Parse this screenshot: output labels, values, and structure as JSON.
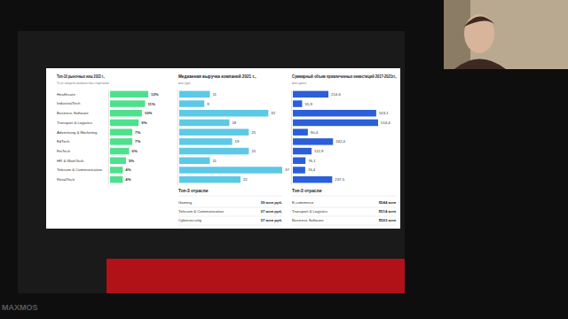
{
  "chart_data": [
    {
      "type": "bar",
      "orientation": "horizontal",
      "title": "Топ-10 рыночных ниш 2022 г.,",
      "subtitle": "% от общего количества стартапов",
      "categories": [
        "Healthcare",
        "IndustrialTech",
        "Business Software",
        "Transport & Logistics",
        "Advertising & Marketing",
        "EdTech",
        "FinTech",
        "HR & WorkTech",
        "Telecom & Communication",
        "RetailTech"
      ],
      "values": [
        12,
        11,
        10,
        9,
        7,
        7,
        6,
        5,
        4,
        4
      ],
      "value_labels": [
        "12%",
        "11%",
        "10%",
        "9%",
        "7%",
        "7%",
        "6%",
        "5%",
        "4%",
        "4%"
      ],
      "color": "#4fe08e",
      "xlim": [
        0,
        12
      ],
      "data_labels": true,
      "tick_labels": "y"
    },
    {
      "type": "bar",
      "orientation": "horizontal",
      "title": "Медианная выручка компаний 2021 г.,",
      "subtitle": "млн руб.",
      "categories": [
        null,
        null,
        null,
        null,
        null,
        null,
        null,
        null,
        null,
        null
      ],
      "values": [
        11,
        9,
        32,
        18,
        25,
        19,
        25,
        11,
        37,
        22
      ],
      "color": "#5cc9e6",
      "xlim": [
        0,
        37
      ],
      "data_labels": true,
      "tick_labels": false
    },
    {
      "type": "bar",
      "orientation": "horizontal",
      "title": "Суммарный объем привлеченных инвестиций 2017-2021гг.,",
      "subtitle": "млн долл.",
      "categories": [
        null,
        null,
        null,
        null,
        null,
        null,
        null,
        null,
        null,
        null
      ],
      "values": [
        214.6,
        55.9,
        503.1,
        514.4,
        90.4,
        242.4,
        112.9,
        76.1,
        74.4,
        237.5
      ],
      "value_labels": [
        "214,6",
        "55,9",
        "503,1",
        "514,4",
        "90,4",
        "242,4",
        "112,9",
        "76,1",
        "74,4",
        "237,5"
      ],
      "color": "#2b5fd9",
      "xlim": [
        0,
        514.4
      ],
      "data_labels": true,
      "tick_labels": false
    }
  ],
  "tables": [
    {
      "title": "Топ-3 отрасли",
      "rows": [
        [
          "Gaming",
          "39 млн руб."
        ],
        [
          "Telecom & Communication",
          "37 млн руб."
        ],
        [
          "Cybersecurity",
          "37 млн руб."
        ]
      ]
    },
    {
      "title": "Топ-3 отрасли",
      "rows": [
        [
          "E-commerce",
          "$544 млн"
        ],
        [
          "Transport & Logistics",
          "$514 млн"
        ],
        [
          "Business Software",
          "$503 млн"
        ]
      ]
    }
  ],
  "logo": "MAXMOS"
}
